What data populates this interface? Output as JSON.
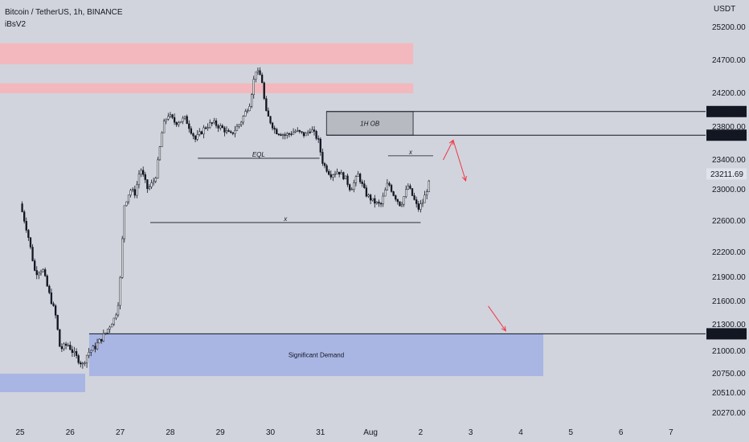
{
  "header": {
    "title": "Bitcoin / TetherUS, 1h, BINANCE",
    "indicator": "iBsV2"
  },
  "colors": {
    "background": "#d1d4dc",
    "candle_up": "#f5f5f5",
    "candle_down": "#131722",
    "supply_zone": "#f2b8be",
    "demand_zone": "#a9b6e4",
    "order_block": "#b8bac2",
    "arrow": "#f23645",
    "line": "#131722"
  },
  "chart_data": {
    "type": "candlestick",
    "symbol": "Bitcoin / TetherUS",
    "timeframe": "1h",
    "exchange": "BINANCE",
    "unit": "USDT",
    "x_tick_labels": [
      "25",
      "26",
      "27",
      "28",
      "29",
      "30",
      "31",
      "Aug",
      "2",
      "3",
      "4",
      "5",
      "6",
      "7"
    ],
    "y_ticks": [
      {
        "label": "25200.00",
        "value": 25200
      },
      {
        "label": "24700.00",
        "value": 24700
      },
      {
        "label": "24200.00",
        "value": 24200
      },
      {
        "label": "23800.00",
        "value": 23800
      },
      {
        "label": "23400.00",
        "value": 23400
      },
      {
        "label": "23000.00",
        "value": 23000
      },
      {
        "label": "22600.00",
        "value": 22600
      },
      {
        "label": "22200.00",
        "value": 22200
      },
      {
        "label": "21900.00",
        "value": 21900
      },
      {
        "label": "21600.00",
        "value": 21600
      },
      {
        "label": "21300.00",
        "value": 21300
      },
      {
        "label": "21000.00",
        "value": 21000
      },
      {
        "label": "20750.00",
        "value": 20750
      },
      {
        "label": "20510.00",
        "value": 20510
      },
      {
        "label": "20270.00",
        "value": 20270
      }
    ],
    "price_keypoints": [
      [
        0,
        22820
      ],
      [
        0.15,
        22450
      ],
      [
        0.3,
        21950
      ],
      [
        0.45,
        22000
      ],
      [
        0.6,
        21650
      ],
      [
        0.7,
        21450
      ],
      [
        0.8,
        21020
      ],
      [
        0.95,
        21080
      ],
      [
        1.1,
        20950
      ],
      [
        1.25,
        20850
      ],
      [
        1.35,
        20980
      ],
      [
        1.5,
        21050
      ],
      [
        1.7,
        21200
      ],
      [
        1.9,
        21400
      ],
      [
        1.98,
        21650
      ],
      [
        2.08,
        22800
      ],
      [
        2.2,
        23000
      ],
      [
        2.3,
        22950
      ],
      [
        2.4,
        23300
      ],
      [
        2.55,
        23000
      ],
      [
        2.7,
        23150
      ],
      [
        2.85,
        23800
      ],
      [
        2.95,
        23950
      ],
      [
        3.1,
        23850
      ],
      [
        3.3,
        23900
      ],
      [
        3.5,
        23650
      ],
      [
        3.7,
        23800
      ],
      [
        3.85,
        23850
      ],
      [
        4.05,
        23780
      ],
      [
        4.2,
        23700
      ],
      [
        4.4,
        23850
      ],
      [
        4.6,
        24100
      ],
      [
        4.7,
        24550
      ],
      [
        4.82,
        24450
      ],
      [
        4.9,
        23980
      ],
      [
        5.1,
        23750
      ],
      [
        5.3,
        23700
      ],
      [
        5.5,
        23750
      ],
      [
        5.7,
        23700
      ],
      [
        5.8,
        23780
      ],
      [
        5.95,
        23650
      ],
      [
        6.05,
        23350
      ],
      [
        6.2,
        23200
      ],
      [
        6.35,
        23250
      ],
      [
        6.5,
        23150
      ],
      [
        6.6,
        23000
      ],
      [
        6.75,
        23200
      ],
      [
        6.9,
        22950
      ],
      [
        7.05,
        22850
      ],
      [
        7.2,
        22800
      ],
      [
        7.35,
        23100
      ],
      [
        7.45,
        22950
      ],
      [
        7.6,
        22800
      ],
      [
        7.75,
        23050
      ],
      [
        7.85,
        22900
      ],
      [
        7.95,
        22750
      ],
      [
        8.05,
        22850
      ],
      [
        8.2,
        23150
      ]
    ],
    "current_price": "23211.69",
    "last_value": 23211.69,
    "zones": [
      {
        "name": "supply-zone-upper",
        "type": "supply",
        "x0": -0.5,
        "x1": 7.85,
        "y0": 24640,
        "y1": 24960
      },
      {
        "name": "supply-zone-lower",
        "type": "supply",
        "x0": -0.5,
        "x1": 7.85,
        "y0": 24200,
        "y1": 24350
      },
      {
        "name": "order-block",
        "type": "order_block",
        "label": "1H OB",
        "x0": 6.12,
        "x1": 7.85,
        "y0": 23700.37,
        "y1": 23982.89
      },
      {
        "name": "significant-demand",
        "type": "demand",
        "label": "Significant Demand",
        "x0": 1.38,
        "x1": 10.45,
        "y0": 20720,
        "y1": 21196.58
      },
      {
        "name": "demand-zone-left",
        "type": "demand",
        "x0": -0.5,
        "x1": 1.3,
        "y0": 20520,
        "y1": 20750
      }
    ],
    "levels": [
      {
        "label": "23982.89",
        "value": 23982.89,
        "x0": 6.12
      },
      {
        "label": "23700.37",
        "value": 23700.37,
        "x0": 6.12
      },
      {
        "label": "21196.58",
        "value": 21196.58,
        "x0": 1.38
      }
    ],
    "annotations": [
      {
        "name": "eql-line",
        "label": "EQL",
        "x0": 3.55,
        "x1": 5.98,
        "y": 23420
      },
      {
        "name": "equal-lows-line",
        "label": "x",
        "x0": 2.6,
        "x1": 8.0,
        "y": 22580
      },
      {
        "name": "equal-highs-line",
        "label": "x",
        "x0": 7.35,
        "x1": 8.25,
        "y": 23450
      }
    ],
    "projected_arrows": [
      {
        "x0": 8.45,
        "y0": 23400,
        "x1": 8.65,
        "y1": 23640
      },
      {
        "x0": 8.65,
        "y0": 23640,
        "x1": 8.9,
        "y1": 23120
      },
      {
        "x0": 9.35,
        "y0": 21540,
        "x1": 9.7,
        "y1": 21230
      }
    ]
  }
}
